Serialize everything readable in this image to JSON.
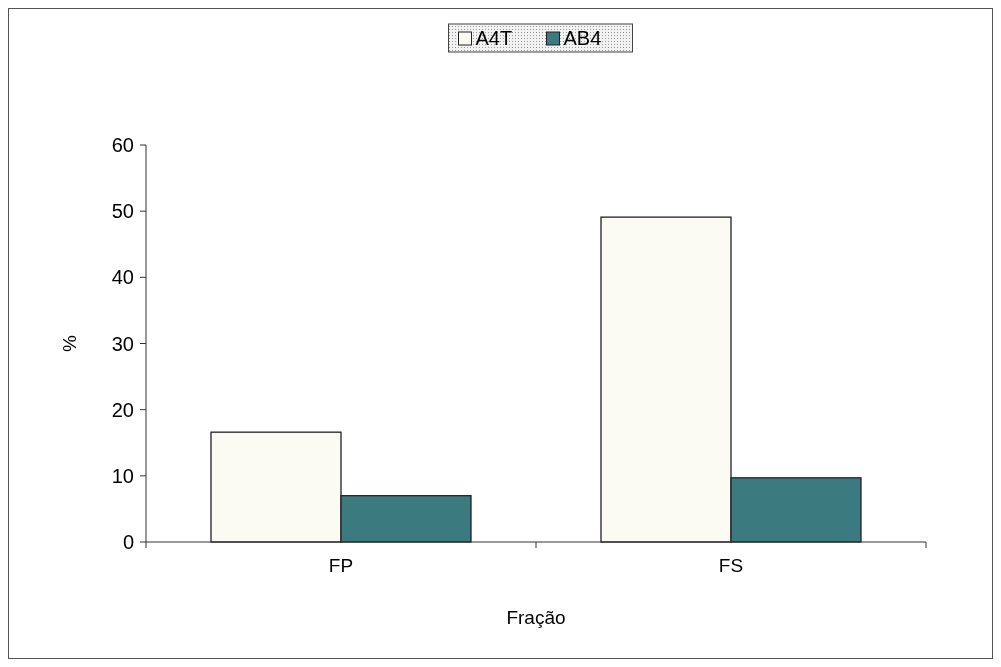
{
  "chart_data": {
    "type": "bar",
    "xlabel": "Fração",
    "ylabel": "%",
    "categories": [
      "FP",
      "FS"
    ],
    "series": [
      {
        "name": "A4T",
        "color": "#fbfbf3",
        "values": [
          16.6,
          49.1
        ]
      },
      {
        "name": "AB4",
        "color": "#3b7a7e",
        "values": [
          7,
          9.7
        ]
      }
    ],
    "ylim": [
      0,
      60
    ],
    "yticks": [
      0,
      10,
      20,
      30,
      40,
      50,
      60
    ],
    "legend": "top",
    "grid": false
  }
}
